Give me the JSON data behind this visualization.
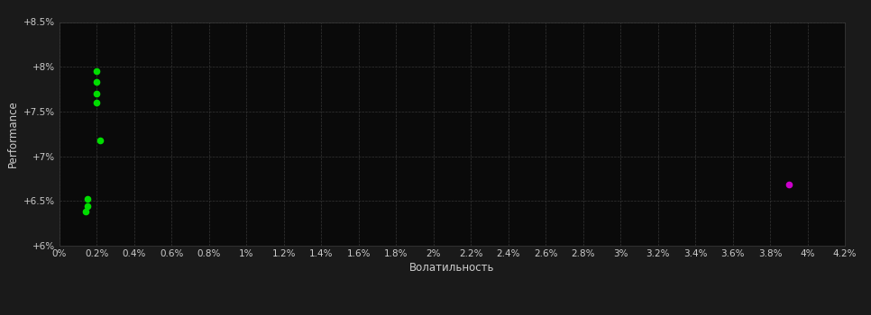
{
  "background_color": "#1a1a1a",
  "plot_bg_color": "#0a0a0a",
  "grid_color": "#3a3a3a",
  "text_color": "#cccccc",
  "xlabel": "Волатильность",
  "ylabel": "Performance",
  "xlim": [
    0.0,
    0.042
  ],
  "ylim": [
    0.06,
    0.085
  ],
  "xtick_vals": [
    0.0,
    0.002,
    0.004,
    0.006,
    0.008,
    0.01,
    0.012,
    0.014,
    0.016,
    0.018,
    0.02,
    0.022,
    0.024,
    0.026,
    0.028,
    0.03,
    0.032,
    0.034,
    0.036,
    0.038,
    0.04,
    0.042
  ],
  "xtick_labels": [
    "0%",
    "0.2%",
    "0.4%",
    "0.6%",
    "0.8%",
    "1%",
    "1.2%",
    "1.4%",
    "1.6%",
    "1.8%",
    "2%",
    "2.2%",
    "2.4%",
    "2.6%",
    "2.8%",
    "3%",
    "3.2%",
    "3.4%",
    "3.6%",
    "3.8%",
    "4%",
    "4.2%"
  ],
  "ytick_vals": [
    0.06,
    0.065,
    0.07,
    0.075,
    0.08,
    0.085
  ],
  "ytick_labels": [
    "+6%",
    "+6.5%",
    "+7%",
    "+7.5%",
    "+8%",
    "+8.5%"
  ],
  "green_points": [
    [
      0.002,
      0.0795
    ],
    [
      0.002,
      0.0783
    ],
    [
      0.002,
      0.077
    ],
    [
      0.002,
      0.076
    ],
    [
      0.0022,
      0.0718
    ],
    [
      0.0015,
      0.0652
    ],
    [
      0.0015,
      0.0644
    ],
    [
      0.0014,
      0.0638
    ]
  ],
  "magenta_points": [
    [
      0.039,
      0.0668
    ]
  ],
  "green_color": "#00dd00",
  "magenta_color": "#cc00cc",
  "marker_size": 4.5
}
